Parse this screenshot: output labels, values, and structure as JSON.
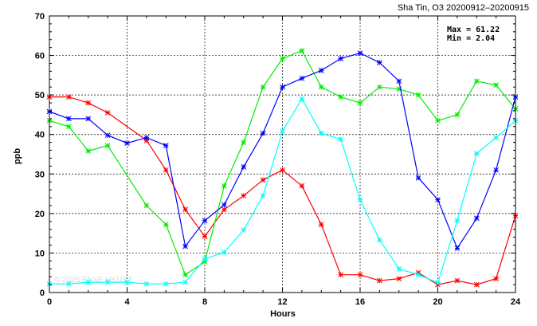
{
  "chart_data": {
    "type": "line",
    "title": "Sha Tin, O3 20200912–20200915",
    "stats": {
      "max_text": "Max = 61.22",
      "min_text": "Min =  2.04"
    },
    "xlabel": "Hours",
    "ylabel": "ppb",
    "xlim": [
      0,
      24
    ],
    "ylim": [
      0,
      70
    ],
    "xticks": [
      0,
      4,
      8,
      12,
      16,
      20,
      24
    ],
    "yticks": [
      0,
      10,
      20,
      30,
      40,
      50,
      60,
      70
    ],
    "grid": true,
    "watermark": "© 2026 EN×E HKUST",
    "x": [
      0,
      1,
      2,
      3,
      4,
      5,
      6,
      7,
      8,
      9,
      10,
      11,
      12,
      13,
      14,
      15,
      16,
      17,
      18,
      19,
      20,
      21,
      22,
      23,
      24
    ],
    "series": [
      {
        "color": "#ff0000",
        "values": [
          49.5,
          49.5,
          48,
          45.5,
          null,
          38.5,
          31,
          21,
          14.2,
          21,
          24.5,
          28.5,
          31,
          27,
          17.2,
          4.5,
          4.5,
          3,
          3.5,
          5,
          2,
          3,
          2,
          3.5,
          19.5
        ]
      },
      {
        "color": "#00ee00",
        "values": [
          43.5,
          42,
          35.8,
          37.2,
          null,
          22,
          17.2,
          4.5,
          7.8,
          27,
          38,
          52,
          59.2,
          61.2,
          52,
          49.5,
          48,
          52,
          51.5,
          50,
          43.5,
          45,
          53.5,
          52.5,
          46.5
        ]
      },
      {
        "color": "#0000ff",
        "values": [
          45.8,
          44,
          44,
          39.8,
          37.8,
          39.2,
          37.2,
          11.7,
          18.2,
          22.2,
          31.8,
          40.3,
          52,
          54.2,
          56.2,
          59.2,
          60.6,
          58.2,
          53.5,
          29,
          23.5,
          11.2,
          18.8,
          31,
          49.5
        ]
      },
      {
        "color": "#00ffff",
        "values": [
          2.2,
          2.2,
          2.6,
          2.6,
          2.6,
          2.2,
          2.2,
          2.6,
          8.5,
          10.2,
          15.8,
          24.5,
          40.8,
          49,
          40.3,
          38.8,
          23.5,
          13.3,
          6,
          4.5,
          2.5,
          18.2,
          35.2,
          39.2,
          43.5
        ]
      }
    ]
  }
}
